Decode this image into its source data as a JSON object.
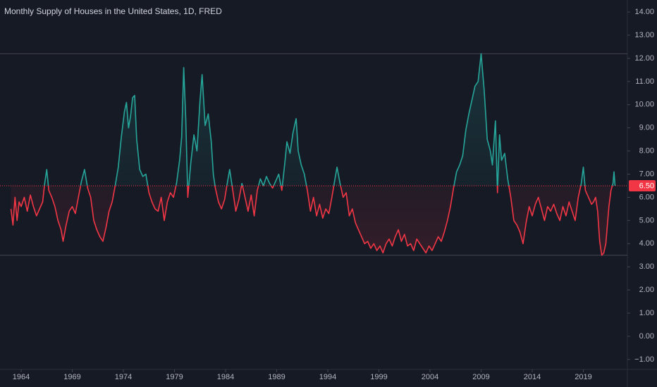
{
  "chart_data": {
    "type": "line",
    "title": "Monthly Supply of Houses in the United States, 1D, FRED",
    "x": [
      1963.0,
      1963.2,
      1963.4,
      1963.6,
      1963.8,
      1964.0,
      1964.3,
      1964.6,
      1964.9,
      1965.2,
      1965.5,
      1965.8,
      1966.1,
      1966.3,
      1966.5,
      1966.7,
      1967.0,
      1967.3,
      1967.6,
      1967.9,
      1968.1,
      1968.4,
      1968.7,
      1969.0,
      1969.3,
      1969.6,
      1969.9,
      1970.2,
      1970.5,
      1970.8,
      1971.1,
      1971.4,
      1971.7,
      1972.0,
      1972.3,
      1972.6,
      1972.9,
      1973.2,
      1973.5,
      1973.8,
      1974.1,
      1974.3,
      1974.5,
      1974.7,
      1974.9,
      1975.1,
      1975.3,
      1975.6,
      1975.9,
      1976.2,
      1976.5,
      1976.8,
      1977.1,
      1977.4,
      1977.7,
      1978.0,
      1978.3,
      1978.6,
      1978.9,
      1979.2,
      1979.5,
      1979.7,
      1979.9,
      1980.1,
      1980.3,
      1980.6,
      1980.9,
      1981.2,
      1981.5,
      1981.7,
      1982.0,
      1982.3,
      1982.6,
      1982.8,
      1983.0,
      1983.3,
      1983.6,
      1983.9,
      1984.2,
      1984.4,
      1984.7,
      1985.0,
      1985.3,
      1985.6,
      1985.9,
      1986.2,
      1986.5,
      1986.8,
      1987.1,
      1987.4,
      1987.7,
      1988.0,
      1988.3,
      1988.6,
      1988.9,
      1989.2,
      1989.5,
      1989.8,
      1990.0,
      1990.3,
      1990.6,
      1990.9,
      1991.1,
      1991.4,
      1991.7,
      1992.0,
      1992.3,
      1992.6,
      1992.9,
      1993.2,
      1993.5,
      1993.8,
      1994.1,
      1994.4,
      1994.7,
      1994.9,
      1995.2,
      1995.5,
      1995.8,
      1996.1,
      1996.4,
      1996.7,
      1997.0,
      1997.3,
      1997.6,
      1997.9,
      1998.2,
      1998.5,
      1998.8,
      1999.1,
      1999.4,
      1999.7,
      2000.0,
      2000.3,
      2000.6,
      2000.9,
      2001.2,
      2001.5,
      2001.8,
      2002.1,
      2002.4,
      2002.7,
      2003.0,
      2003.3,
      2003.6,
      2003.9,
      2004.2,
      2004.5,
      2004.8,
      2005.1,
      2005.4,
      2005.7,
      2006.0,
      2006.3,
      2006.6,
      2006.9,
      2007.2,
      2007.5,
      2007.8,
      2008.1,
      2008.4,
      2008.7,
      2008.9,
      2009.0,
      2009.3,
      2009.6,
      2009.9,
      2010.1,
      2010.4,
      2010.6,
      2010.8,
      2011.0,
      2011.3,
      2011.6,
      2011.9,
      2012.2,
      2012.5,
      2012.8,
      2013.1,
      2013.4,
      2013.7,
      2014.0,
      2014.3,
      2014.6,
      2014.9,
      2015.2,
      2015.5,
      2015.8,
      2016.1,
      2016.4,
      2016.7,
      2017.0,
      2017.3,
      2017.6,
      2017.9,
      2018.2,
      2018.5,
      2018.8,
      2019.0,
      2019.2,
      2019.5,
      2019.8,
      2020.0,
      2020.2,
      2020.4,
      2020.6,
      2020.8,
      2021.0,
      2021.2,
      2021.5,
      2021.7,
      2021.9,
      2022.0,
      2022.1
    ],
    "series": [
      {
        "values": [
          5.5,
          4.8,
          6.0,
          5.0,
          5.8,
          5.6,
          6.0,
          5.4,
          6.1,
          5.6,
          5.2,
          5.5,
          5.8,
          6.6,
          7.2,
          6.3,
          6.0,
          5.6,
          5.0,
          4.6,
          4.1,
          4.8,
          5.4,
          5.6,
          5.3,
          6.0,
          6.7,
          7.2,
          6.4,
          6.0,
          5.0,
          4.6,
          4.3,
          4.1,
          4.7,
          5.4,
          5.8,
          6.5,
          7.3,
          8.6,
          9.7,
          10.1,
          9.0,
          9.5,
          10.3,
          10.4,
          8.5,
          7.2,
          6.9,
          7.0,
          6.2,
          5.8,
          5.5,
          5.4,
          6.0,
          5.0,
          5.8,
          6.2,
          6.0,
          6.6,
          7.6,
          8.6,
          11.6,
          9.4,
          6.0,
          7.5,
          8.7,
          8.0,
          10.2,
          11.3,
          9.1,
          9.6,
          8.4,
          7.0,
          6.4,
          5.8,
          5.5,
          5.9,
          6.7,
          7.2,
          6.3,
          5.4,
          5.9,
          6.6,
          6.0,
          5.4,
          6.1,
          5.2,
          6.3,
          6.8,
          6.5,
          6.9,
          6.6,
          6.4,
          6.7,
          7.0,
          6.3,
          7.5,
          8.4,
          7.9,
          8.8,
          9.4,
          8.0,
          7.4,
          7.0,
          6.3,
          5.4,
          6.0,
          5.2,
          5.7,
          5.1,
          5.5,
          5.3,
          6.0,
          6.8,
          7.3,
          6.6,
          6.0,
          6.2,
          5.2,
          5.5,
          4.9,
          4.6,
          4.3,
          4.0,
          4.1,
          3.8,
          4.0,
          3.7,
          3.9,
          3.6,
          4.0,
          4.2,
          3.9,
          4.3,
          4.6,
          4.1,
          4.4,
          3.9,
          4.0,
          3.7,
          4.2,
          4.0,
          3.8,
          3.6,
          3.9,
          3.7,
          4.0,
          4.3,
          4.1,
          4.5,
          5.0,
          5.6,
          6.4,
          7.1,
          7.4,
          7.8,
          8.9,
          9.6,
          10.2,
          10.8,
          11.0,
          11.8,
          12.2,
          10.6,
          8.5,
          8.0,
          7.4,
          9.3,
          6.2,
          8.7,
          7.6,
          7.9,
          6.8,
          6.0,
          5.0,
          4.8,
          4.5,
          4.0,
          4.9,
          5.6,
          5.2,
          5.7,
          6.0,
          5.5,
          5.0,
          5.6,
          5.4,
          5.7,
          5.3,
          5.0,
          5.6,
          5.2,
          5.8,
          5.4,
          5.0,
          6.0,
          6.6,
          7.3,
          6.3,
          6.0,
          5.7,
          5.8,
          6.0,
          5.4,
          4.1,
          3.5,
          3.6,
          4.0,
          5.6,
          6.3,
          6.6,
          7.1,
          6.5
        ]
      }
    ],
    "baseline": 6.5,
    "colors": {
      "above": "#26a69a",
      "below": "#f23645"
    },
    "high_line": 12.2,
    "low_line": 3.5,
    "last_label": {
      "value": 6.5,
      "label": "6.50"
    },
    "xlim": [
      1961.93,
      2023.31
    ],
    "xticks": [
      1964,
      1969,
      1974,
      1979,
      1984,
      1989,
      1994,
      1999,
      2004,
      2009,
      2014,
      2019
    ],
    "ylim": [
      -1.43,
      14.52
    ],
    "yticks": [
      {
        "value": -1,
        "label": "−1.00"
      },
      {
        "value": 0,
        "label": "0.00"
      },
      {
        "value": 1,
        "label": "1.00"
      },
      {
        "value": 2,
        "label": "2.00"
      },
      {
        "value": 3,
        "label": "3.00"
      },
      {
        "value": 4,
        "label": "4.00"
      },
      {
        "value": 5,
        "label": "5.00"
      },
      {
        "value": 6,
        "label": "6.00"
      },
      {
        "value": 7,
        "label": "7.00"
      },
      {
        "value": 8,
        "label": "8.00"
      },
      {
        "value": 9,
        "label": "9.00"
      },
      {
        "value": 10,
        "label": "10.00"
      },
      {
        "value": 11,
        "label": "11.00"
      },
      {
        "value": 12,
        "label": "12.00"
      },
      {
        "value": 13,
        "label": "13.00"
      },
      {
        "value": 14,
        "label": "14.00"
      }
    ],
    "grid": false
  }
}
